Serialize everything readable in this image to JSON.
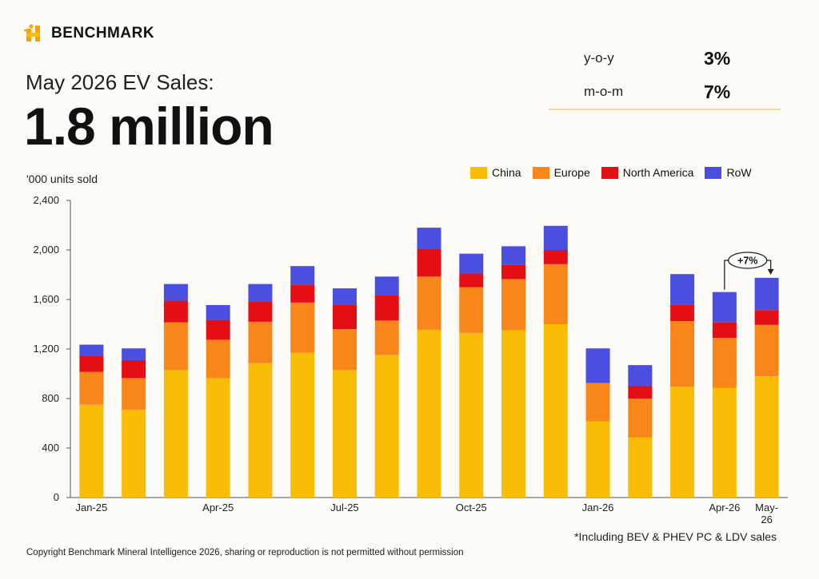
{
  "brand": {
    "name": "BENCHMARK"
  },
  "header": {
    "subtitle": "May 2026 EV Sales:",
    "big_number": "1.8 million"
  },
  "kpis": [
    {
      "label": "y-o-y",
      "value": "3%"
    },
    {
      "label": "m-o-m",
      "value": "7%"
    }
  ],
  "footnote": "*Including BEV & PHEV PC & LDV sales",
  "copyright": "Copyright Benchmark Mineral Intelligence 2026, sharing or reproduction is not permitted without permission",
  "colors": {
    "china": "#fbbc05",
    "europe": "#f8861b",
    "north_america": "#e30f15",
    "row": "#4a4fe0"
  },
  "chart_data": {
    "type": "bar",
    "stacked": true,
    "ylabel": "'000 units sold",
    "ylim": [
      0,
      2400
    ],
    "yticks": [
      0,
      400,
      800,
      1200,
      1600,
      2000,
      2400
    ],
    "ytick_labels": [
      "0",
      "400",
      "800",
      "1,200",
      "1,600",
      "2,000",
      "2,400"
    ],
    "categories": [
      "Jan-25",
      "Feb-25",
      "Mar-25",
      "Apr-25",
      "May-25",
      "Jun-25",
      "Jul-25",
      "Aug-25",
      "Sep-25",
      "Oct-25",
      "Nov-25",
      "Dec-25",
      "Jan-26",
      "Feb-26",
      "Mar-26",
      "Apr-26",
      "May-26"
    ],
    "xtick_labels": [
      "Jan-25",
      "",
      "",
      "Apr-25",
      "",
      "",
      "Jul-25",
      "",
      "",
      "Oct-25",
      "",
      "",
      "Jan-26",
      "",
      "",
      "Apr-26",
      "May-\n26"
    ],
    "legend_position": "top-right",
    "series": [
      {
        "name": "China",
        "color": "#fbbc05",
        "values": [
          750,
          710,
          1030,
          965,
          1085,
          1170,
          1030,
          1150,
          1355,
          1330,
          1350,
          1400,
          615,
          485,
          895,
          885,
          980
        ]
      },
      {
        "name": "Europe",
        "color": "#f8861b",
        "values": [
          265,
          255,
          385,
          310,
          335,
          405,
          330,
          280,
          430,
          370,
          415,
          485,
          310,
          315,
          530,
          405,
          415
        ]
      },
      {
        "name": "North America",
        "color": "#e30f15",
        "values": [
          130,
          145,
          175,
          160,
          165,
          145,
          195,
          205,
          225,
          110,
          115,
          115,
          0,
          100,
          135,
          125,
          120
        ]
      },
      {
        "name": "RoW",
        "color": "#4a4fe0",
        "values": [
          90,
          95,
          135,
          120,
          140,
          150,
          135,
          150,
          170,
          160,
          150,
          195,
          280,
          170,
          245,
          245,
          260
        ]
      }
    ],
    "annotations": [
      {
        "text": "+7%",
        "from": "Apr-26",
        "to": "May-26"
      }
    ]
  }
}
